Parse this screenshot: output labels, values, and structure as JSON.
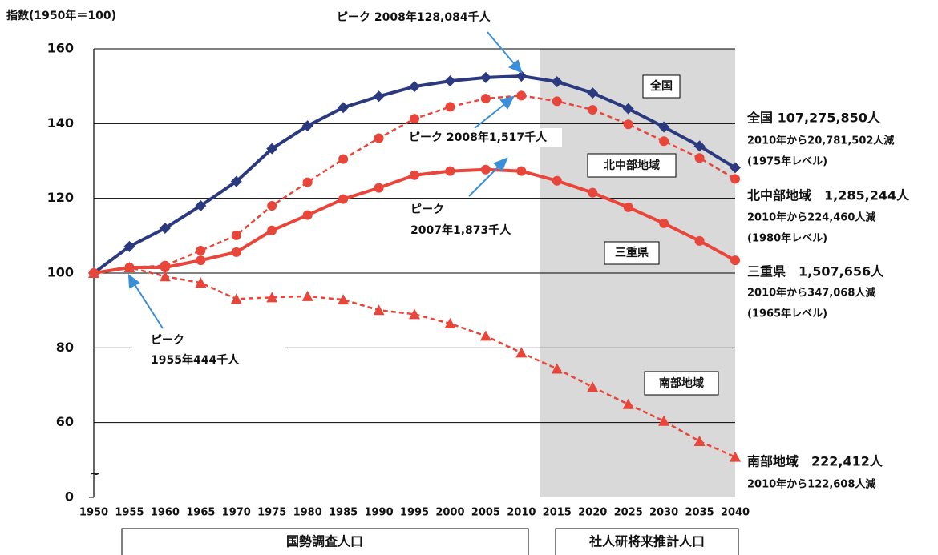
{
  "chart_data": {
    "type": "line",
    "title": "指数(1950年＝100)",
    "x": [
      1950,
      1955,
      1960,
      1965,
      1970,
      1975,
      1980,
      1985,
      1990,
      1995,
      2000,
      2005,
      2010,
      2015,
      2020,
      2025,
      2030,
      2035,
      2040
    ],
    "xticks": [
      1950,
      1955,
      1960,
      1965,
      1970,
      1975,
      1980,
      1985,
      1990,
      1995,
      2000,
      2005,
      2010,
      2015,
      2020,
      2025,
      2030,
      2035,
      2040
    ],
    "ylim": [
      0,
      160
    ],
    "yticks": [
      0,
      60,
      80,
      100,
      120,
      140,
      160
    ],
    "axis_break_label": "~",
    "grid": true,
    "series": [
      {
        "name": "全国",
        "color": "#2b3a7e",
        "marker": "diamond",
        "dashed": false,
        "values": [
          100,
          107.1,
          112,
          118,
          124.5,
          133.3,
          139.4,
          144.3,
          147.3,
          149.9,
          151.4,
          152.3,
          152.7,
          151.2,
          148.2,
          144,
          139.1,
          134,
          128.2
        ]
      },
      {
        "name": "北中部地域",
        "color": "#e8463a",
        "marker": "circle",
        "dashed": true,
        "values": [
          100,
          101.5,
          102,
          106,
          110.1,
          118,
          124.3,
          130.5,
          136.1,
          141.3,
          144.5,
          146.7,
          147.5,
          146,
          143.7,
          139.8,
          135.3,
          130.8,
          125.2
        ]
      },
      {
        "name": "三重県",
        "color": "#e8463a",
        "marker": "circle",
        "dashed": false,
        "values": [
          100,
          101.5,
          101.5,
          103.4,
          105.6,
          111.4,
          115.5,
          119.8,
          122.8,
          126.2,
          127.3,
          127.7,
          127.3,
          124.7,
          121.5,
          117.6,
          113.3,
          108.6,
          103.4
        ]
      },
      {
        "name": "南部地域",
        "color": "#e8463a",
        "marker": "triangle",
        "dashed": true,
        "values": [
          100,
          101.5,
          99.1,
          97.4,
          93.1,
          93.5,
          93.8,
          92.9,
          90.1,
          89,
          86.5,
          83.2,
          78.7,
          74.4,
          69.5,
          64.9,
          60.4,
          55,
          50.8
        ]
      }
    ],
    "annotations": {
      "peak_all": "ピーク 2008年128,084千人",
      "peak_north": "ピーク 2008年1,517千人",
      "peak_mie": [
        "ピーク",
        "2007年1,873千人"
      ],
      "peak_south": [
        "ピーク",
        "1955年444千人"
      ],
      "end_all": [
        "全国 107,275,850人",
        "2010年から20,781,502人減",
        "(1975年レベル)"
      ],
      "end_north": [
        "北中部地域　1,285,244人",
        "2010年から224,460人減",
        "(1980年レベル)"
      ],
      "end_mie": [
        "三重県　1,507,656人",
        "2010年から347,068人減",
        "(1965年レベル)"
      ],
      "end_south": [
        "南部地域　222,412人",
        "2010年から122,608人減"
      ]
    },
    "periods": [
      "国勢調査人口",
      "社人研将来推計人口"
    ]
  }
}
